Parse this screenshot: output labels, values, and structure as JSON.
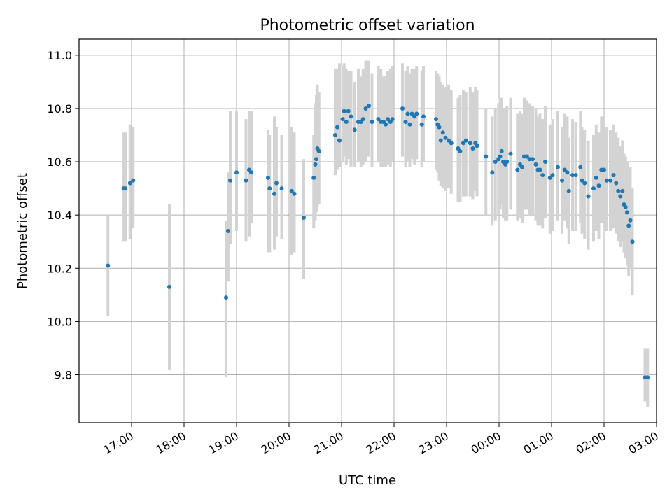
{
  "chart_data": {
    "type": "scatter",
    "title": "Photometric offset variation",
    "xlabel": "UTC time",
    "ylabel": "Photometric offset",
    "x_unit": "UTC hours (values past 24 are after midnight)",
    "xlim": [
      16.0,
      27.0
    ],
    "ylim": [
      9.62,
      11.06
    ],
    "grid": true,
    "colors": {
      "point": "#1f77b4",
      "errorbar": "#d3d3d3",
      "grid": "#b0b0b0"
    },
    "xticks": [
      {
        "value": 17,
        "label": "17:00"
      },
      {
        "value": 18,
        "label": "18:00"
      },
      {
        "value": 19,
        "label": "19:00"
      },
      {
        "value": 20,
        "label": "20:00"
      },
      {
        "value": 21,
        "label": "21:00"
      },
      {
        "value": 22,
        "label": "22:00"
      },
      {
        "value": 23,
        "label": "23:00"
      },
      {
        "value": 24,
        "label": "00:00"
      },
      {
        "value": 25,
        "label": "01:00"
      },
      {
        "value": 26,
        "label": "02:00"
      },
      {
        "value": 27,
        "label": "03:00"
      }
    ],
    "yticks": [
      {
        "value": 9.8,
        "label": "9.8"
      },
      {
        "value": 10.0,
        "label": "10.0"
      },
      {
        "value": 10.2,
        "label": "10.2"
      },
      {
        "value": 10.4,
        "label": "10.4"
      },
      {
        "value": 10.6,
        "label": "10.6"
      },
      {
        "value": 10.8,
        "label": "10.8"
      },
      {
        "value": 11.0,
        "label": "11.0"
      }
    ],
    "points": [
      [
        16.55,
        10.21,
        10.02,
        10.4
      ],
      [
        16.85,
        10.5,
        10.3,
        10.71
      ],
      [
        16.88,
        10.5,
        10.3,
        10.71
      ],
      [
        16.97,
        10.52,
        10.31,
        10.74
      ],
      [
        17.03,
        10.53,
        10.35,
        10.73
      ],
      [
        17.72,
        10.13,
        9.82,
        10.44
      ],
      [
        18.8,
        10.09,
        9.79,
        10.38
      ],
      [
        18.84,
        10.34,
        10.15,
        10.56
      ],
      [
        18.88,
        10.53,
        10.29,
        10.79
      ],
      [
        19.0,
        10.56,
        10.34,
        10.79
      ],
      [
        19.18,
        10.53,
        10.3,
        10.76
      ],
      [
        19.24,
        10.57,
        10.32,
        10.79
      ],
      [
        19.28,
        10.56,
        10.37,
        10.79
      ],
      [
        19.6,
        10.54,
        10.26,
        10.72
      ],
      [
        19.63,
        10.5,
        10.26,
        10.7
      ],
      [
        19.72,
        10.48,
        10.27,
        10.77
      ],
      [
        19.76,
        10.52,
        10.32,
        10.73
      ],
      [
        19.86,
        10.5,
        10.31,
        10.7
      ],
      [
        20.05,
        10.49,
        10.25,
        10.73
      ],
      [
        20.1,
        10.48,
        10.26,
        10.71
      ],
      [
        20.28,
        10.39,
        10.16,
        10.61
      ],
      [
        20.47,
        10.54,
        10.35,
        10.7
      ],
      [
        20.5,
        10.59,
        10.38,
        10.82
      ],
      [
        20.52,
        10.61,
        10.41,
        10.85
      ],
      [
        20.54,
        10.65,
        10.43,
        10.89
      ],
      [
        20.57,
        10.64,
        10.44,
        10.86
      ],
      [
        20.88,
        10.7,
        10.55,
        10.95
      ],
      [
        20.92,
        10.73,
        10.57,
        10.95
      ],
      [
        20.96,
        10.68,
        10.58,
        10.97
      ],
      [
        21.02,
        10.76,
        10.6,
        10.96
      ],
      [
        21.05,
        10.79,
        10.62,
        10.97
      ],
      [
        21.09,
        10.75,
        10.59,
        10.95
      ],
      [
        21.13,
        10.79,
        10.61,
        10.94
      ],
      [
        21.18,
        10.77,
        10.58,
        10.94
      ],
      [
        21.25,
        10.72,
        10.58,
        10.9
      ],
      [
        21.32,
        10.75,
        10.6,
        10.95
      ],
      [
        21.37,
        10.75,
        10.58,
        10.92
      ],
      [
        21.41,
        10.76,
        10.59,
        10.95
      ],
      [
        21.46,
        10.8,
        10.6,
        10.98
      ],
      [
        21.52,
        10.81,
        10.62,
        10.98
      ],
      [
        21.58,
        10.75,
        10.58,
        10.93
      ],
      [
        21.7,
        10.76,
        10.6,
        10.96
      ],
      [
        21.75,
        10.75,
        10.58,
        10.95
      ],
      [
        21.8,
        10.75,
        10.58,
        10.92
      ],
      [
        21.84,
        10.74,
        10.58,
        10.92
      ],
      [
        21.88,
        10.76,
        10.59,
        10.94
      ],
      [
        21.93,
        10.75,
        10.58,
        10.95
      ],
      [
        21.97,
        10.76,
        10.6,
        10.96
      ],
      [
        22.16,
        10.8,
        10.62,
        10.97
      ],
      [
        22.22,
        10.75,
        10.58,
        10.94
      ],
      [
        22.26,
        10.78,
        10.6,
        10.96
      ],
      [
        22.3,
        10.74,
        10.58,
        10.93
      ],
      [
        22.34,
        10.78,
        10.61,
        10.95
      ],
      [
        22.39,
        10.77,
        10.59,
        10.95
      ],
      [
        22.43,
        10.78,
        10.61,
        10.96
      ],
      [
        22.53,
        10.74,
        10.58,
        10.94
      ],
      [
        22.56,
        10.77,
        10.6,
        10.96
      ],
      [
        22.8,
        10.76,
        10.57,
        10.94
      ],
      [
        22.83,
        10.74,
        10.56,
        10.93
      ],
      [
        22.86,
        10.73,
        10.53,
        10.92
      ],
      [
        22.89,
        10.68,
        10.51,
        10.9
      ],
      [
        22.93,
        10.71,
        10.5,
        10.89
      ],
      [
        22.98,
        10.69,
        10.49,
        10.88
      ],
      [
        23.04,
        10.68,
        10.5,
        10.89
      ],
      [
        23.09,
        10.67,
        10.48,
        10.87
      ],
      [
        23.22,
        10.65,
        10.45,
        10.84
      ],
      [
        23.26,
        10.64,
        10.45,
        10.85
      ],
      [
        23.32,
        10.67,
        10.47,
        10.87
      ],
      [
        23.37,
        10.68,
        10.47,
        10.86
      ],
      [
        23.45,
        10.67,
        10.47,
        10.88
      ],
      [
        23.5,
        10.65,
        10.46,
        10.86
      ],
      [
        23.55,
        10.67,
        10.49,
        10.88
      ],
      [
        23.58,
        10.66,
        10.47,
        10.87
      ],
      [
        23.75,
        10.62,
        10.4,
        10.8
      ],
      [
        23.87,
        10.56,
        10.36,
        10.77
      ],
      [
        23.93,
        10.6,
        10.38,
        10.8
      ],
      [
        23.99,
        10.61,
        10.4,
        10.82
      ],
      [
        24.02,
        10.62,
        10.42,
        10.84
      ],
      [
        24.05,
        10.64,
        10.44,
        10.84
      ],
      [
        24.08,
        10.6,
        10.39,
        10.8
      ],
      [
        24.12,
        10.59,
        10.38,
        10.8
      ],
      [
        24.15,
        10.6,
        10.38,
        10.81
      ],
      [
        24.22,
        10.63,
        10.42,
        10.84
      ],
      [
        24.35,
        10.57,
        10.38,
        10.78
      ],
      [
        24.4,
        10.59,
        10.39,
        10.79
      ],
      [
        24.44,
        10.58,
        10.37,
        10.78
      ],
      [
        24.48,
        10.62,
        10.42,
        10.84
      ],
      [
        24.53,
        10.62,
        10.42,
        10.83
      ],
      [
        24.58,
        10.61,
        10.4,
        10.82
      ],
      [
        24.64,
        10.61,
        10.4,
        10.81
      ],
      [
        24.7,
        10.59,
        10.38,
        10.8
      ],
      [
        24.74,
        10.57,
        10.36,
        10.77
      ],
      [
        24.78,
        10.57,
        10.36,
        10.78
      ],
      [
        24.83,
        10.55,
        10.35,
        10.76
      ],
      [
        24.88,
        10.6,
        10.39,
        10.81
      ],
      [
        24.97,
        10.54,
        10.33,
        10.74
      ],
      [
        25.02,
        10.55,
        10.34,
        10.76
      ],
      [
        25.12,
        10.58,
        10.38,
        10.79
      ],
      [
        25.2,
        10.53,
        10.33,
        10.73
      ],
      [
        25.25,
        10.57,
        10.38,
        10.78
      ],
      [
        25.3,
        10.56,
        10.35,
        10.77
      ],
      [
        25.33,
        10.49,
        10.29,
        10.69
      ],
      [
        25.4,
        10.55,
        10.34,
        10.76
      ],
      [
        25.46,
        10.55,
        10.34,
        10.75
      ],
      [
        25.55,
        10.58,
        10.37,
        10.79
      ],
      [
        25.58,
        10.53,
        10.33,
        10.73
      ],
      [
        25.63,
        10.52,
        10.31,
        10.72
      ],
      [
        25.7,
        10.47,
        10.27,
        10.68
      ],
      [
        25.8,
        10.5,
        10.3,
        10.7
      ],
      [
        25.85,
        10.54,
        10.34,
        10.74
      ],
      [
        25.9,
        10.51,
        10.31,
        10.71
      ],
      [
        25.95,
        10.57,
        10.37,
        10.77
      ],
      [
        26.0,
        10.57,
        10.36,
        10.77
      ],
      [
        26.05,
        10.53,
        10.34,
        10.73
      ],
      [
        26.12,
        10.53,
        10.34,
        10.72
      ],
      [
        26.18,
        10.55,
        10.35,
        10.74
      ],
      [
        26.23,
        10.52,
        10.33,
        10.71
      ],
      [
        26.27,
        10.49,
        10.3,
        10.69
      ],
      [
        26.31,
        10.47,
        10.28,
        10.66
      ],
      [
        26.35,
        10.49,
        10.3,
        10.68
      ],
      [
        26.38,
        10.44,
        10.26,
        10.63
      ],
      [
        26.41,
        10.43,
        10.24,
        10.62
      ],
      [
        26.44,
        10.41,
        10.21,
        10.6
      ],
      [
        26.47,
        10.36,
        10.17,
        10.56
      ],
      [
        26.5,
        10.38,
        10.2,
        10.58
      ],
      [
        26.54,
        10.3,
        10.1,
        10.5
      ],
      [
        26.78,
        9.79,
        9.7,
        9.9
      ],
      [
        26.83,
        9.79,
        9.68,
        9.9
      ]
    ]
  }
}
